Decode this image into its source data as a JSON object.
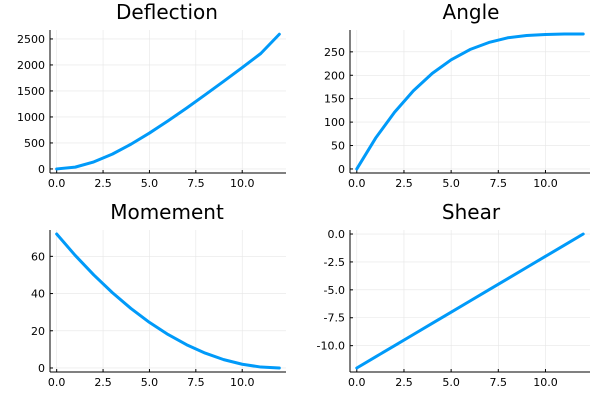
{
  "chart_data": [
    {
      "type": "line",
      "title": "Deflection",
      "xlabel": "",
      "ylabel": "",
      "xlim": [
        -0.36,
        12.36
      ],
      "ylim": [
        -78,
        2672
      ],
      "xticks": [
        0,
        2.5,
        5,
        7.5,
        10
      ],
      "xtick_labels": [
        "0.0",
        "2.5",
        "5.0",
        "7.5",
        "10.0"
      ],
      "yticks": [
        0,
        500,
        1000,
        1500,
        2000,
        2500
      ],
      "ytick_labels": [
        "0",
        "500",
        "1000",
        "1500",
        "2000",
        "2500"
      ],
      "grid": true,
      "legend": "none",
      "color": "#009af9",
      "x": [
        0,
        1,
        2,
        3,
        4,
        5,
        6,
        7,
        8,
        9,
        10,
        11,
        12
      ],
      "y": [
        0,
        35,
        135,
        285,
        475,
        690,
        925,
        1170,
        1425,
        1685,
        1950,
        2220,
        2590
      ]
    },
    {
      "type": "line",
      "title": "Angle",
      "xlabel": "",
      "ylabel": "",
      "xlim": [
        -0.36,
        12.36
      ],
      "ylim": [
        -8.64,
        296.64
      ],
      "xticks": [
        0,
        2.5,
        5,
        7.5,
        10
      ],
      "xtick_labels": [
        "0.0",
        "2.5",
        "5.0",
        "7.5",
        "10.0"
      ],
      "yticks": [
        0,
        50,
        100,
        150,
        200,
        250
      ],
      "ytick_labels": [
        "0",
        "50",
        "100",
        "150",
        "200",
        "250"
      ],
      "grid": true,
      "legend": "none",
      "color": "#009af9",
      "x": [
        0,
        1,
        2,
        3,
        4,
        5,
        6,
        7,
        8,
        9,
        10,
        11,
        12
      ],
      "y": [
        0,
        66,
        121,
        167,
        204,
        233,
        255,
        270,
        280,
        285,
        287,
        288,
        288
      ]
    },
    {
      "type": "line",
      "title": "Momement",
      "xlabel": "",
      "ylabel": "",
      "xlim": [
        -0.36,
        12.36
      ],
      "ylim": [
        -2.16,
        74.16
      ],
      "xticks": [
        0,
        2.5,
        5,
        7.5,
        10
      ],
      "xtick_labels": [
        "0.0",
        "2.5",
        "5.0",
        "7.5",
        "10.0"
      ],
      "yticks": [
        0,
        20,
        40,
        60
      ],
      "ytick_labels": [
        "0",
        "20",
        "40",
        "60"
      ],
      "grid": true,
      "legend": "none",
      "color": "#009af9",
      "x": [
        0,
        1,
        2,
        3,
        4,
        5,
        6,
        7,
        8,
        9,
        10,
        11,
        12
      ],
      "y": [
        72,
        60.5,
        50,
        40.5,
        32,
        24.5,
        18,
        12.5,
        8,
        4.5,
        2,
        0.5,
        0
      ]
    },
    {
      "type": "line",
      "title": "Shear",
      "xlabel": "",
      "ylabel": "",
      "xlim": [
        -0.36,
        12.36
      ],
      "ylim": [
        -12.36,
        0.36
      ],
      "xticks": [
        0,
        2.5,
        5,
        7.5,
        10
      ],
      "xtick_labels": [
        "0.0",
        "2.5",
        "5.0",
        "7.5",
        "10.0"
      ],
      "yticks": [
        0,
        -2.5,
        -5,
        -7.5,
        -10
      ],
      "ytick_labels": [
        "0.0",
        "-2.5",
        "-5.0",
        "-7.5",
        "-10.0"
      ],
      "grid": true,
      "legend": "none",
      "color": "#009af9",
      "x": [
        0,
        1,
        2,
        3,
        4,
        5,
        6,
        7,
        8,
        9,
        10,
        11,
        12
      ],
      "y": [
        -12,
        -11,
        -10,
        -9,
        -8,
        -7,
        -6,
        -5,
        -4,
        -3,
        -2,
        -1,
        0
      ]
    }
  ]
}
